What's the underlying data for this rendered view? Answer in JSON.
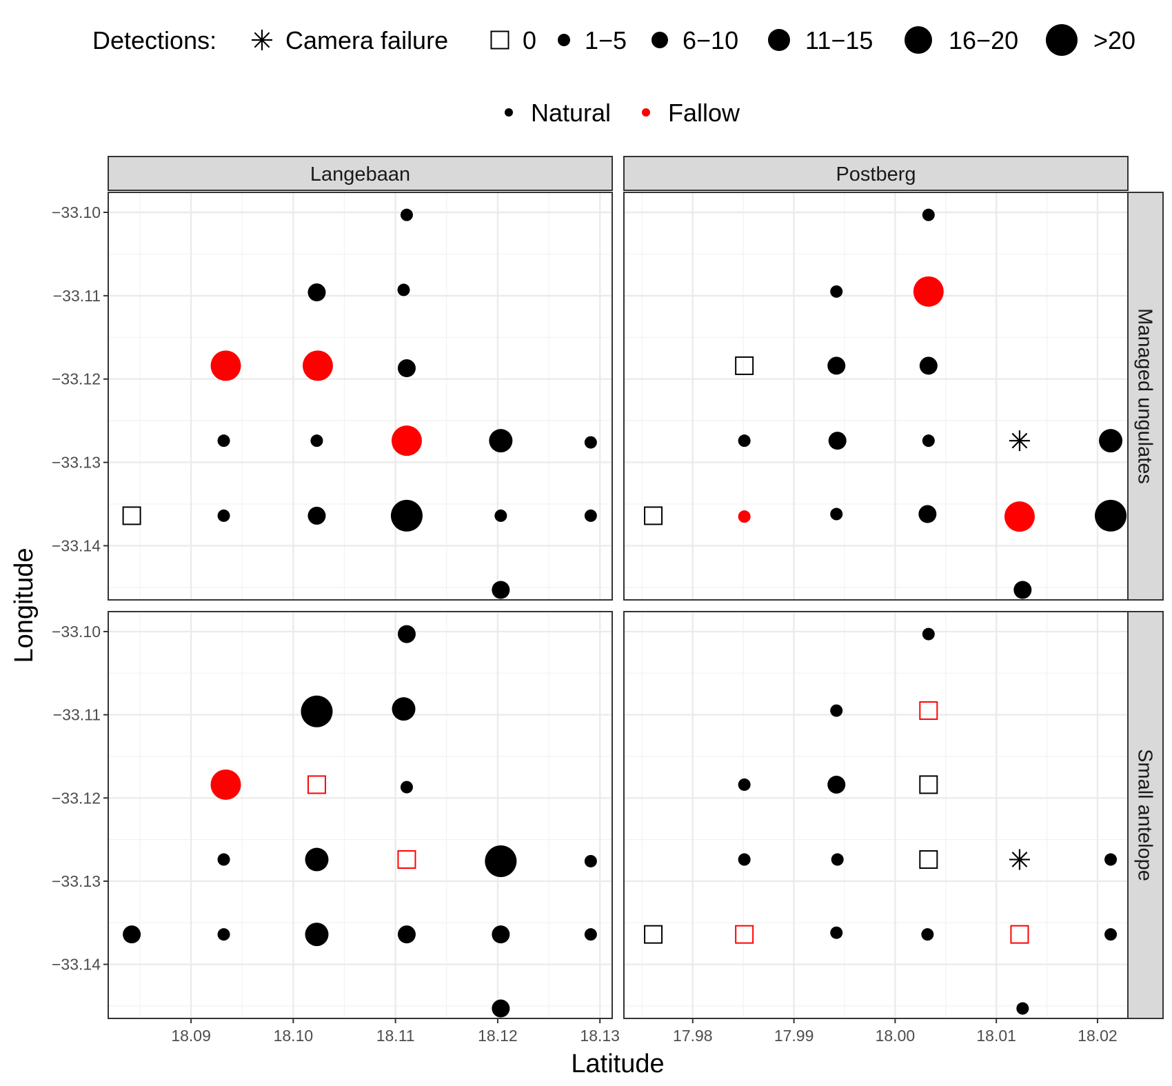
{
  "chart_data": {
    "type": "scatter",
    "title": "",
    "xlabel": "Latitude",
    "ylabel": "Longitude",
    "legend": {
      "detections": {
        "title": "Detections:",
        "entries": [
          {
            "key": "failure",
            "label": "Camera failure"
          },
          {
            "key": "0",
            "label": "0"
          },
          {
            "key": "1-5",
            "label": "1−5"
          },
          {
            "key": "6-10",
            "label": "6−10"
          },
          {
            "key": "11-15",
            "label": "11−15"
          },
          {
            "key": "16-20",
            "label": "16−20"
          },
          {
            "key": ">20",
            "label": ">20"
          }
        ]
      },
      "habitat": {
        "entries": [
          {
            "key": "Natural",
            "label": "Natural",
            "color": "#000000"
          },
          {
            "key": "Fallow",
            "label": "Fallow",
            "color": "#ff0000"
          }
        ]
      },
      "placement": "top"
    },
    "colors": {
      "Natural": "#000000",
      "Fallow": "#ff0000"
    },
    "grid": true,
    "y_axis": {
      "ylim": [
        -33.1465,
        -33.0976
      ],
      "ticks": [
        -33.1,
        -33.11,
        -33.12,
        -33.13,
        -33.14
      ],
      "tick_labels": [
        "−33.10",
        "−33.11",
        "−33.12",
        "−33.13",
        "−33.14"
      ]
    },
    "columns": [
      {
        "name": "Langebaan",
        "xlim": [
          18.0819,
          18.1312
        ],
        "ticks": [
          18.09,
          18.1,
          18.11,
          18.12,
          18.13
        ],
        "tick_labels": [
          "18.09",
          "18.10",
          "18.11",
          "18.12",
          "18.13"
        ]
      },
      {
        "name": "Postberg",
        "xlim": [
          17.9732,
          18.023
        ],
        "ticks": [
          17.98,
          17.99,
          18.0,
          18.01,
          18.02
        ],
        "tick_labels": [
          "17.98",
          "17.99",
          "18.00",
          "18.01",
          "18.02"
        ]
      }
    ],
    "rows": [
      {
        "name": "Managed ungulates"
      },
      {
        "name": "Small antelope"
      }
    ],
    "panels": [
      {
        "column": "Langebaan",
        "row": "Managed ungulates",
        "points": [
          {
            "x": 18.1111,
            "y": -33.1003,
            "detections": "1-5",
            "habitat": "Natural"
          },
          {
            "x": 18.1023,
            "y": -33.1096,
            "detections": "6-10",
            "habitat": "Natural"
          },
          {
            "x": 18.1108,
            "y": -33.1093,
            "detections": "1-5",
            "habitat": "Natural"
          },
          {
            "x": 18.0934,
            "y": -33.1184,
            "detections": "16-20",
            "habitat": "Fallow"
          },
          {
            "x": 18.1024,
            "y": -33.1184,
            "detections": "16-20",
            "habitat": "Fallow"
          },
          {
            "x": 18.1111,
            "y": -33.1187,
            "detections": "6-10",
            "habitat": "Natural"
          },
          {
            "x": 18.0932,
            "y": -33.1274,
            "detections": "1-5",
            "habitat": "Natural"
          },
          {
            "x": 18.1023,
            "y": -33.1274,
            "detections": "1-5",
            "habitat": "Natural"
          },
          {
            "x": 18.1111,
            "y": -33.1274,
            "detections": "16-20",
            "habitat": "Fallow"
          },
          {
            "x": 18.1203,
            "y": -33.1274,
            "detections": "11-15",
            "habitat": "Natural"
          },
          {
            "x": 18.1291,
            "y": -33.1276,
            "detections": "1-5",
            "habitat": "Natural"
          },
          {
            "x": 18.0842,
            "y": -33.1364,
            "detections": "0",
            "habitat": "Natural"
          },
          {
            "x": 18.0932,
            "y": -33.1364,
            "detections": "1-5",
            "habitat": "Natural"
          },
          {
            "x": 18.1023,
            "y": -33.1364,
            "detections": "6-10",
            "habitat": "Natural"
          },
          {
            "x": 18.1111,
            "y": -33.1364,
            "detections": ">20",
            "habitat": "Natural"
          },
          {
            "x": 18.1203,
            "y": -33.1364,
            "detections": "1-5",
            "habitat": "Natural"
          },
          {
            "x": 18.1291,
            "y": -33.1364,
            "detections": "1-5",
            "habitat": "Natural"
          },
          {
            "x": 18.1203,
            "y": -33.1453,
            "detections": "6-10",
            "habitat": "Natural"
          }
        ]
      },
      {
        "column": "Postberg",
        "row": "Managed ungulates",
        "points": [
          {
            "x": 18.0033,
            "y": -33.1003,
            "detections": "1-5",
            "habitat": "Natural"
          },
          {
            "x": 17.9942,
            "y": -33.1095,
            "detections": "1-5",
            "habitat": "Natural"
          },
          {
            "x": 18.0033,
            "y": -33.1095,
            "detections": "16-20",
            "habitat": "Fallow"
          },
          {
            "x": 17.9851,
            "y": -33.1184,
            "detections": "0",
            "habitat": "Natural"
          },
          {
            "x": 17.9942,
            "y": -33.1184,
            "detections": "6-10",
            "habitat": "Natural"
          },
          {
            "x": 18.0033,
            "y": -33.1184,
            "detections": "6-10",
            "habitat": "Natural"
          },
          {
            "x": 17.9851,
            "y": -33.1274,
            "detections": "1-5",
            "habitat": "Natural"
          },
          {
            "x": 17.9943,
            "y": -33.1274,
            "detections": "6-10",
            "habitat": "Natural"
          },
          {
            "x": 18.0033,
            "y": -33.1274,
            "detections": "1-5",
            "habitat": "Natural"
          },
          {
            "x": 18.0123,
            "y": -33.1274,
            "detections": "failure",
            "habitat": "Natural"
          },
          {
            "x": 18.0213,
            "y": -33.1274,
            "detections": "11-15",
            "habitat": "Natural"
          },
          {
            "x": 17.9761,
            "y": -33.1364,
            "detections": "0",
            "habitat": "Natural"
          },
          {
            "x": 17.9851,
            "y": -33.1365,
            "detections": "1-5",
            "habitat": "Fallow"
          },
          {
            "x": 17.9942,
            "y": -33.1362,
            "detections": "1-5",
            "habitat": "Natural"
          },
          {
            "x": 18.0032,
            "y": -33.1362,
            "detections": "6-10",
            "habitat": "Natural"
          },
          {
            "x": 18.0123,
            "y": -33.1365,
            "detections": "16-20",
            "habitat": "Fallow"
          },
          {
            "x": 18.0213,
            "y": -33.1364,
            "detections": ">20",
            "habitat": "Natural"
          },
          {
            "x": 18.0126,
            "y": -33.1453,
            "detections": "6-10",
            "habitat": "Natural"
          }
        ]
      },
      {
        "column": "Langebaan",
        "row": "Small antelope",
        "points": [
          {
            "x": 18.1111,
            "y": -33.1003,
            "detections": "6-10",
            "habitat": "Natural"
          },
          {
            "x": 18.1023,
            "y": -33.1096,
            "detections": ">20",
            "habitat": "Natural"
          },
          {
            "x": 18.1108,
            "y": -33.1093,
            "detections": "11-15",
            "habitat": "Natural"
          },
          {
            "x": 18.0934,
            "y": -33.1184,
            "detections": "16-20",
            "habitat": "Fallow"
          },
          {
            "x": 18.1023,
            "y": -33.1184,
            "detections": "0",
            "habitat": "Fallow"
          },
          {
            "x": 18.1111,
            "y": -33.1187,
            "detections": "1-5",
            "habitat": "Natural"
          },
          {
            "x": 18.0932,
            "y": -33.1274,
            "detections": "1-5",
            "habitat": "Natural"
          },
          {
            "x": 18.1023,
            "y": -33.1274,
            "detections": "11-15",
            "habitat": "Natural"
          },
          {
            "x": 18.1111,
            "y": -33.1274,
            "detections": "0",
            "habitat": "Fallow"
          },
          {
            "x": 18.1203,
            "y": -33.1276,
            "detections": ">20",
            "habitat": "Natural"
          },
          {
            "x": 18.1291,
            "y": -33.1276,
            "detections": "1-5",
            "habitat": "Natural"
          },
          {
            "x": 18.0842,
            "y": -33.1364,
            "detections": "6-10",
            "habitat": "Natural"
          },
          {
            "x": 18.0932,
            "y": -33.1364,
            "detections": "1-5",
            "habitat": "Natural"
          },
          {
            "x": 18.1023,
            "y": -33.1364,
            "detections": "11-15",
            "habitat": "Natural"
          },
          {
            "x": 18.1111,
            "y": -33.1364,
            "detections": "6-10",
            "habitat": "Natural"
          },
          {
            "x": 18.1203,
            "y": -33.1364,
            "detections": "6-10",
            "habitat": "Natural"
          },
          {
            "x": 18.1291,
            "y": -33.1364,
            "detections": "1-5",
            "habitat": "Natural"
          },
          {
            "x": 18.1203,
            "y": -33.1453,
            "detections": "6-10",
            "habitat": "Natural"
          }
        ]
      },
      {
        "column": "Postberg",
        "row": "Small antelope",
        "points": [
          {
            "x": 18.0033,
            "y": -33.1003,
            "detections": "1-5",
            "habitat": "Natural"
          },
          {
            "x": 17.9942,
            "y": -33.1095,
            "detections": "1-5",
            "habitat": "Natural"
          },
          {
            "x": 18.0033,
            "y": -33.1095,
            "detections": "0",
            "habitat": "Fallow"
          },
          {
            "x": 17.9851,
            "y": -33.1184,
            "detections": "1-5",
            "habitat": "Natural"
          },
          {
            "x": 17.9942,
            "y": -33.1184,
            "detections": "6-10",
            "habitat": "Natural"
          },
          {
            "x": 18.0033,
            "y": -33.1184,
            "detections": "0",
            "habitat": "Natural"
          },
          {
            "x": 17.9851,
            "y": -33.1274,
            "detections": "1-5",
            "habitat": "Natural"
          },
          {
            "x": 17.9943,
            "y": -33.1274,
            "detections": "1-5",
            "habitat": "Natural"
          },
          {
            "x": 18.0033,
            "y": -33.1274,
            "detections": "0",
            "habitat": "Natural"
          },
          {
            "x": 18.0123,
            "y": -33.1274,
            "detections": "failure",
            "habitat": "Natural"
          },
          {
            "x": 18.0213,
            "y": -33.1274,
            "detections": "1-5",
            "habitat": "Natural"
          },
          {
            "x": 17.9761,
            "y": -33.1364,
            "detections": "0",
            "habitat": "Natural"
          },
          {
            "x": 17.9851,
            "y": -33.1364,
            "detections": "0",
            "habitat": "Fallow"
          },
          {
            "x": 17.9942,
            "y": -33.1362,
            "detections": "1-5",
            "habitat": "Natural"
          },
          {
            "x": 18.0032,
            "y": -33.1364,
            "detections": "1-5",
            "habitat": "Natural"
          },
          {
            "x": 18.0123,
            "y": -33.1364,
            "detections": "0",
            "habitat": "Fallow"
          },
          {
            "x": 18.0213,
            "y": -33.1364,
            "detections": "1-5",
            "habitat": "Natural"
          },
          {
            "x": 18.0126,
            "y": -33.1453,
            "detections": "1-5",
            "habitat": "Natural"
          }
        ]
      }
    ]
  }
}
